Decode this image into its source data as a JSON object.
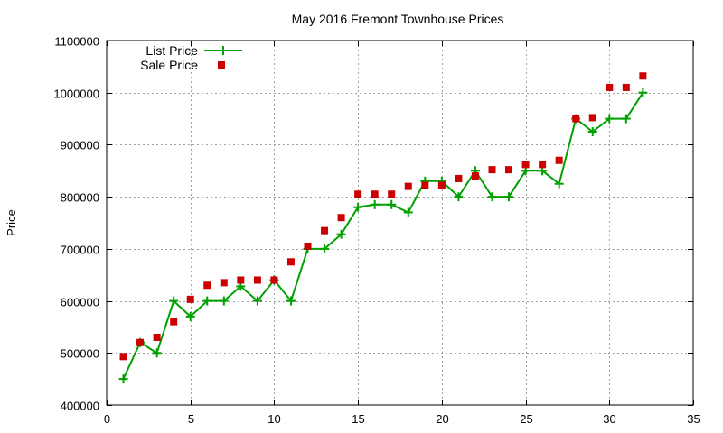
{
  "chart_data": {
    "type": "scatter",
    "title": "May 2016 Fremont Townhouse Prices",
    "xlabel": "",
    "ylabel": "Price",
    "xlim": [
      0,
      35
    ],
    "ylim": [
      400000,
      1100000
    ],
    "x_ticks": [
      0,
      5,
      10,
      15,
      20,
      25,
      30,
      35
    ],
    "y_ticks": [
      400000,
      500000,
      600000,
      700000,
      800000,
      900000,
      1000000,
      1100000
    ],
    "grid": true,
    "legend_position": "top-left",
    "series": [
      {
        "name": "List Price",
        "style": "line-with-plus-markers",
        "color": "#00a000",
        "x": [
          1,
          2,
          3,
          4,
          5,
          6,
          7,
          8,
          9,
          10,
          11,
          12,
          13,
          14,
          15,
          16,
          17,
          18,
          19,
          20,
          21,
          22,
          23,
          24,
          25,
          26,
          27,
          28,
          29,
          30,
          31,
          32
        ],
        "y": [
          450000,
          520000,
          500000,
          600000,
          570000,
          600000,
          600000,
          628000,
          600000,
          640000,
          600000,
          700000,
          700000,
          728000,
          780000,
          785000,
          785000,
          770000,
          830000,
          830000,
          800000,
          850000,
          800000,
          800000,
          850000,
          850000,
          825000,
          950000,
          925000,
          950000,
          950000,
          1000000
        ]
      },
      {
        "name": "Sale Price",
        "style": "square-markers",
        "color": "#cc0000",
        "x": [
          1,
          2,
          3,
          4,
          5,
          6,
          7,
          8,
          9,
          10,
          11,
          12,
          13,
          14,
          15,
          16,
          17,
          18,
          19,
          20,
          21,
          22,
          23,
          24,
          25,
          26,
          27,
          28,
          29,
          30,
          31,
          32
        ],
        "y": [
          493000,
          520000,
          530000,
          560000,
          603000,
          630000,
          635000,
          640000,
          640000,
          640000,
          675000,
          705000,
          735000,
          760000,
          805000,
          805000,
          805000,
          820000,
          822000,
          822000,
          835000,
          840000,
          852000,
          852000,
          862000,
          862000,
          870000,
          950000,
          952000,
          1010000,
          1010000,
          1032000
        ]
      }
    ]
  }
}
